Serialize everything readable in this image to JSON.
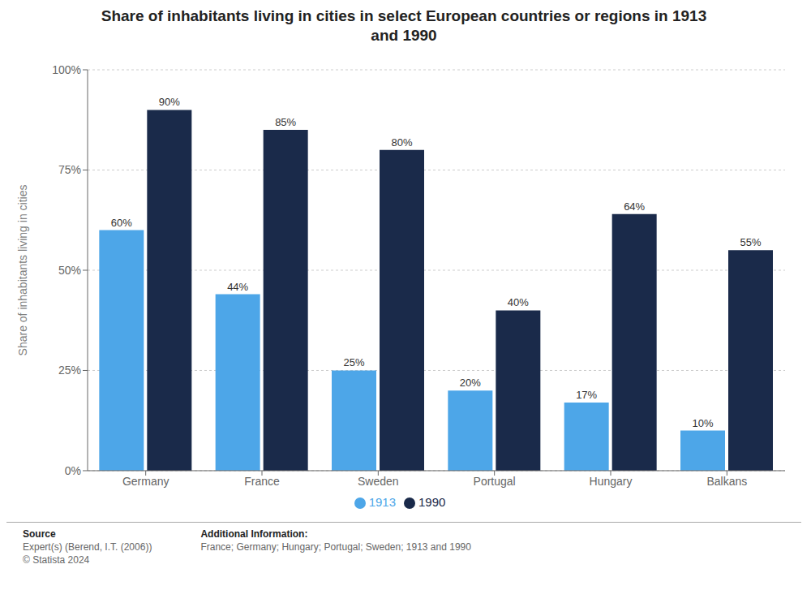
{
  "chart_data": {
    "type": "bar",
    "title": "Share of inhabitants living in cities in select European countries or regions in 1913\nand 1990",
    "categories": [
      "Germany",
      "France",
      "Sweden",
      "Portugal",
      "Hungary",
      "Balkans"
    ],
    "series": [
      {
        "name": "1913",
        "color": "#4da6e8",
        "values": [
          60,
          44,
          25,
          20,
          17,
          10
        ],
        "value_labels": [
          "60%",
          "44%",
          "25%",
          "20%",
          "17%",
          "10%"
        ]
      },
      {
        "name": "1990",
        "color": "#1a2a4a",
        "values": [
          90,
          85,
          80,
          40,
          64,
          55
        ],
        "value_labels": [
          "90%",
          "85%",
          "80%",
          "40%",
          "64%",
          "55%"
        ]
      }
    ],
    "ylabel": "Share of inhabitants living in cities",
    "ylim": [
      0,
      100
    ],
    "yticks": [
      {
        "value": 0,
        "label": "0%"
      },
      {
        "value": 25,
        "label": "25%"
      },
      {
        "value": 50,
        "label": "50%"
      },
      {
        "value": 75,
        "label": "75%"
      },
      {
        "value": 100,
        "label": "100%"
      }
    ],
    "grid": true,
    "legend": "bottom",
    "data_labels": true,
    "annotations": [
      "Source",
      "Expert(s) (Berend, I.T. (2006))\n© Statista 2024",
      "Additional Information:",
      "France; Germany; Hungary; Portugal; Sweden; 1913 and 1990"
    ]
  }
}
